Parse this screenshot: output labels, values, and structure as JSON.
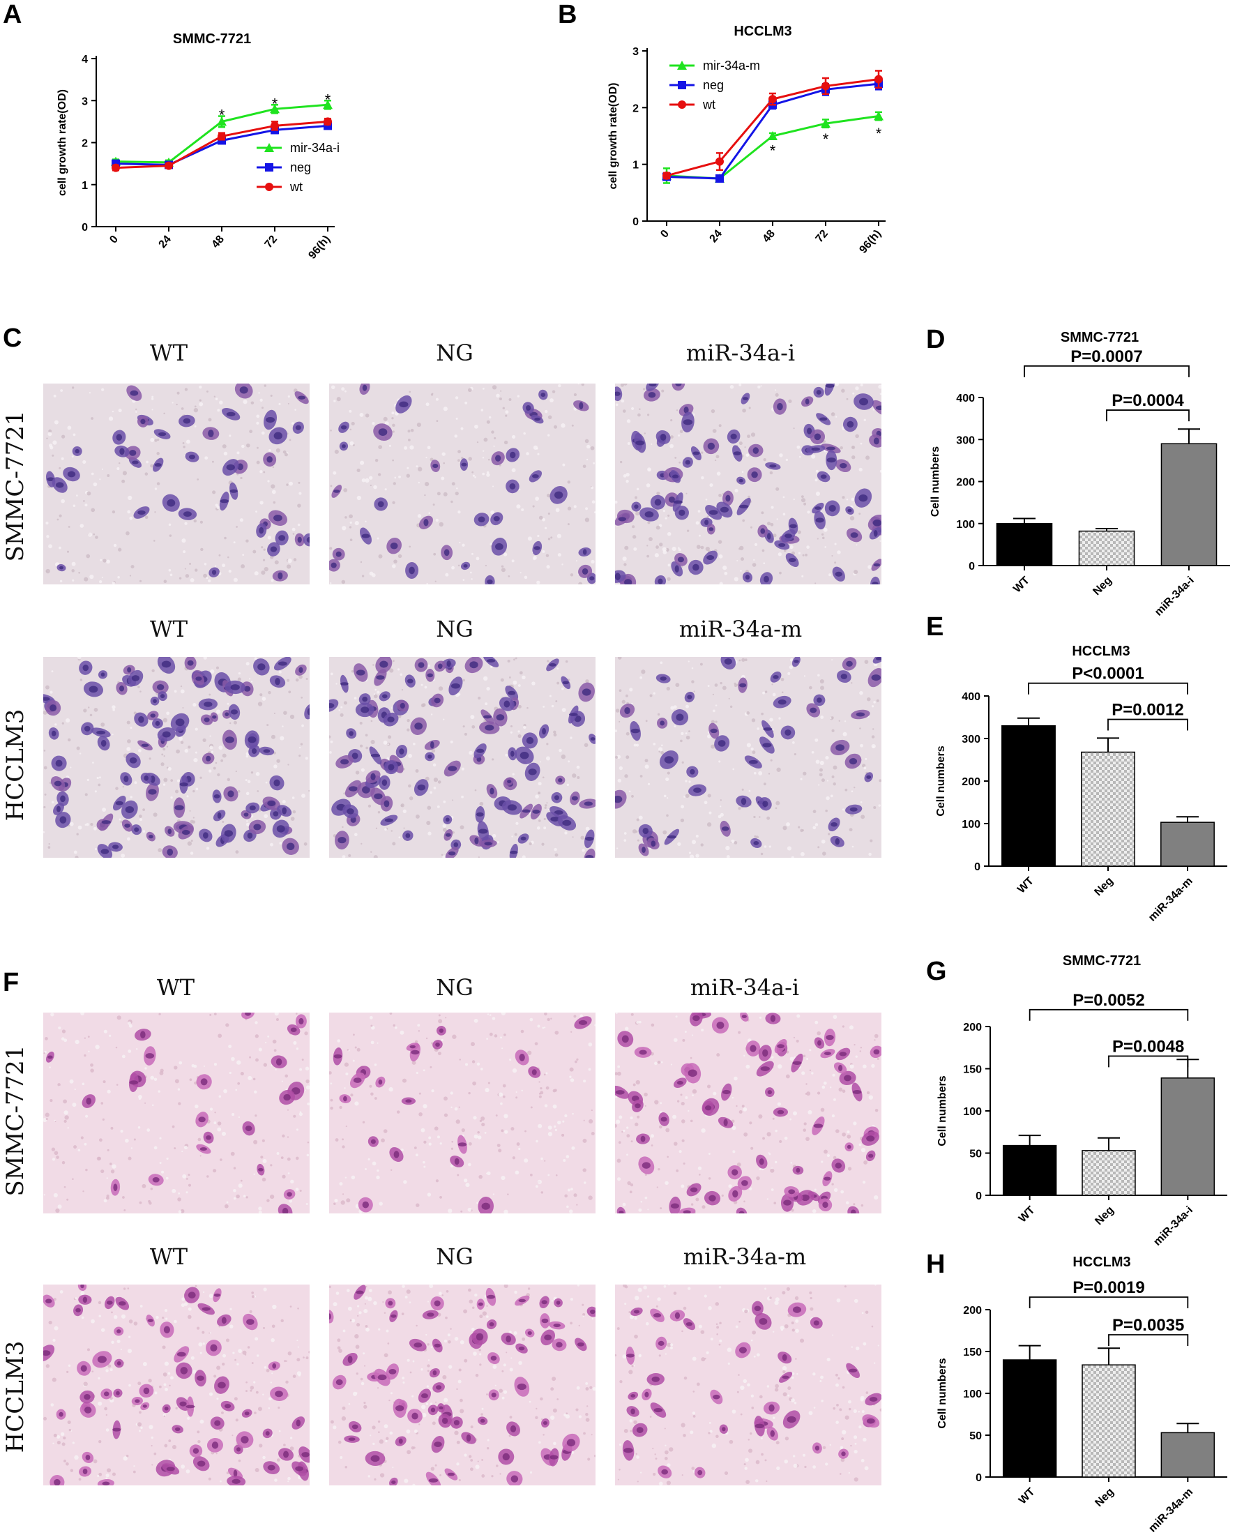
{
  "panels": {
    "A": "A",
    "B": "B",
    "C": "C",
    "D": "D",
    "E": "E",
    "F": "F",
    "G": "G",
    "H": "H"
  },
  "colors": {
    "green": "#1fe31f",
    "blue": "#1414e6",
    "red": "#e60f0f",
    "bar_wt": "#000000",
    "bar_neg": "#d0d0d0",
    "bar_mir": "#808080"
  },
  "micro_panels": {
    "C": {
      "row1": {
        "label": "SMMC-7721",
        "cols": [
          "WT",
          "NG",
          "miR-34a-i"
        ],
        "density": [
          0.35,
          0.3,
          0.85
        ]
      },
      "row2": {
        "label": "HCCLM3",
        "cols": [
          "WT",
          "NG",
          "miR-34a-m"
        ],
        "density": [
          1.0,
          1.0,
          0.4
        ]
      },
      "tone": "purple"
    },
    "F": {
      "row1": {
        "label": "SMMC-7721",
        "cols": [
          "WT",
          "NG",
          "miR-34a-i"
        ],
        "density": [
          0.15,
          0.12,
          0.6
        ]
      },
      "row2": {
        "label": "HCCLM3",
        "cols": [
          "WT",
          "NG",
          "miR-34a-m"
        ],
        "density": [
          0.6,
          0.6,
          0.3
        ]
      },
      "tone": "magenta"
    }
  },
  "chart_data": [
    {
      "id": "A",
      "type": "line",
      "title": "SMMC-7721",
      "ylabel": "cell growth rate(OD)",
      "categories": [
        "0",
        "24",
        "48",
        "72",
        "96(h)"
      ],
      "ylim": [
        0,
        4
      ],
      "yticks": [
        "0",
        "1",
        "2",
        "3",
        "4"
      ],
      "series": [
        {
          "name": "mir-34a-i",
          "color": "#1fe31f",
          "marker": "triangle",
          "values": [
            1.55,
            1.53,
            2.5,
            2.8,
            2.9
          ],
          "err": [
            0.05,
            0.05,
            0.13,
            0.1,
            0.1
          ]
        },
        {
          "name": "neg",
          "color": "#1414e6",
          "marker": "square",
          "values": [
            1.5,
            1.47,
            2.05,
            2.3,
            2.4
          ],
          "err": [
            0.05,
            0.05,
            0.05,
            0.08,
            0.07
          ]
        },
        {
          "name": "wt",
          "color": "#e60f0f",
          "marker": "circle",
          "values": [
            1.4,
            1.45,
            2.15,
            2.4,
            2.5
          ],
          "err": [
            0.06,
            0.05,
            0.08,
            0.1,
            0.07
          ]
        }
      ],
      "stars": [
        {
          "x": 2,
          "y": 2.66,
          "text": "*"
        },
        {
          "x": 3,
          "y": 2.93,
          "text": "*"
        },
        {
          "x": 4,
          "y": 3.03,
          "text": "*"
        }
      ],
      "legend": "right"
    },
    {
      "id": "B",
      "type": "line",
      "title": "HCCLM3",
      "ylabel": "cell growth rate(OD)",
      "categories": [
        "0",
        "24",
        "48",
        "72",
        "96(h)"
      ],
      "ylim": [
        0,
        3
      ],
      "yticks": [
        "0",
        "1",
        "2",
        "3"
      ],
      "series": [
        {
          "name": "mir-34a-m",
          "color": "#1fe31f",
          "marker": "triangle",
          "values": [
            0.8,
            0.75,
            1.5,
            1.72,
            1.85
          ],
          "err": [
            0.13,
            0.05,
            0.05,
            0.07,
            0.07
          ]
        },
        {
          "name": "neg",
          "color": "#1414e6",
          "marker": "square",
          "values": [
            0.78,
            0.75,
            2.05,
            2.32,
            2.42
          ],
          "err": [
            0.05,
            0.05,
            0.07,
            0.1,
            0.1
          ]
        },
        {
          "name": "wt",
          "color": "#e60f0f",
          "marker": "circle",
          "values": [
            0.8,
            1.05,
            2.15,
            2.38,
            2.5
          ],
          "err": [
            0.05,
            0.15,
            0.1,
            0.14,
            0.15
          ]
        }
      ],
      "stars": [
        {
          "x": 2,
          "y": 1.25,
          "text": "*"
        },
        {
          "x": 3,
          "y": 1.45,
          "text": "*"
        },
        {
          "x": 4,
          "y": 1.55,
          "text": "*"
        }
      ],
      "legend": "top-left"
    },
    {
      "id": "D",
      "type": "bar",
      "title": "SMMC-7721",
      "ylabel": "Cell numbers",
      "categories": [
        "WT",
        "Neg",
        "miR-34a-i"
      ],
      "values": [
        100,
        82,
        290
      ],
      "err": [
        12,
        6,
        35
      ],
      "ylim": [
        0,
        400
      ],
      "yticks": [
        "0",
        "100",
        "200",
        "300",
        "400"
      ],
      "brackets": [
        {
          "from": 0,
          "to": 2,
          "text": "P=0.0007",
          "level": 475
        },
        {
          "from": 1,
          "to": 2,
          "text": "P=0.0004",
          "level": 370
        }
      ]
    },
    {
      "id": "E",
      "type": "bar",
      "title": "HCCLM3",
      "ylabel": "Cell numbers",
      "categories": [
        "WT",
        "Neg",
        "miR-34a-m"
      ],
      "values": [
        330,
        268,
        103
      ],
      "err": [
        18,
        33,
        13
      ],
      "ylim": [
        0,
        400
      ],
      "yticks": [
        "0",
        "100",
        "200",
        "300",
        "400"
      ],
      "brackets": [
        {
          "from": 0,
          "to": 2,
          "text": "P<0.0001",
          "level": 430
        },
        {
          "from": 1,
          "to": 2,
          "text": "P=0.0012",
          "level": 345
        }
      ]
    },
    {
      "id": "G",
      "type": "bar",
      "title": "SMMC-7721",
      "ylabel": "Cell numbers",
      "categories": [
        "WT",
        "Neg",
        "miR-34a-i"
      ],
      "values": [
        59,
        53,
        139
      ],
      "err": [
        12,
        15,
        22
      ],
      "ylim": [
        0,
        200
      ],
      "yticks": [
        "0",
        "50",
        "100",
        "150",
        "200"
      ],
      "brackets": [
        {
          "from": 0,
          "to": 2,
          "text": "P=0.0052",
          "level": 220
        },
        {
          "from": 1,
          "to": 2,
          "text": "P=0.0048",
          "level": 165
        }
      ]
    },
    {
      "id": "H",
      "type": "bar",
      "title": "HCCLM3",
      "ylabel": "Cell numbers",
      "categories": [
        "WT",
        "Neg",
        "miR-34a-m"
      ],
      "values": [
        140,
        134,
        53
      ],
      "err": [
        17,
        20,
        11
      ],
      "ylim": [
        0,
        200
      ],
      "yticks": [
        "0",
        "50",
        "100",
        "150",
        "200"
      ],
      "brackets": [
        {
          "from": 0,
          "to": 2,
          "text": "P=0.0019",
          "level": 215
        },
        {
          "from": 1,
          "to": 2,
          "text": "P=0.0035",
          "level": 170
        }
      ]
    }
  ]
}
